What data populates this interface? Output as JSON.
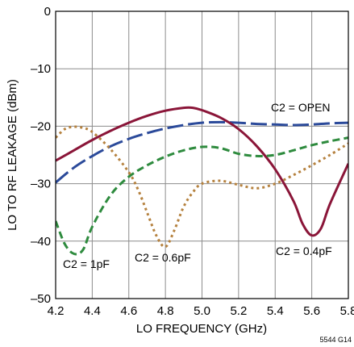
{
  "chart_data": {
    "type": "line",
    "xlabel": "LO FREQUENCY (GHz)",
    "ylabel": "LO TO RF LEAKAGE (dBm)",
    "xlim": [
      4.2,
      5.8
    ],
    "ylim": [
      -50,
      0
    ],
    "xticks": [
      "4.2",
      "4.4",
      "4.6",
      "4.8",
      "5.0",
      "5.2",
      "5.4",
      "5.6",
      "5.8"
    ],
    "yticks": [
      "0",
      "–10",
      "–20",
      "–30",
      "–40",
      "–50"
    ],
    "grid": true,
    "figure_id": "5544 G14",
    "series": [
      {
        "name": "C2 = OPEN",
        "color": "#2b4a9a",
        "style": "long-dash",
        "x": [
          4.2,
          4.3,
          4.4,
          4.5,
          4.6,
          4.7,
          4.8,
          4.9,
          5.0,
          5.1,
          5.2,
          5.3,
          5.4,
          5.5,
          5.6,
          5.7,
          5.8
        ],
        "y": [
          -29.8,
          -27.2,
          -25.2,
          -23.5,
          -22.2,
          -21.2,
          -20.4,
          -19.8,
          -19.4,
          -19.3,
          -19.4,
          -19.6,
          -19.7,
          -19.8,
          -19.7,
          -19.5,
          -19.4
        ]
      },
      {
        "name": "C2 = 0.4pF",
        "color": "#8a1538",
        "style": "solid",
        "x": [
          4.2,
          4.3,
          4.4,
          4.5,
          4.6,
          4.7,
          4.8,
          4.9,
          4.95,
          5.0,
          5.1,
          5.2,
          5.3,
          5.4,
          5.5,
          5.55,
          5.6,
          5.65,
          5.7,
          5.8
        ],
        "y": [
          -26.0,
          -24.2,
          -22.4,
          -20.8,
          -19.4,
          -18.2,
          -17.3,
          -16.8,
          -16.8,
          -17.2,
          -18.5,
          -20.5,
          -23.5,
          -27.5,
          -33.0,
          -37.0,
          -39.0,
          -37.8,
          -33.5,
          -26.5
        ]
      },
      {
        "name": "C2 = 1pF",
        "color": "#2e8b3e",
        "style": "dash",
        "x": [
          4.2,
          4.25,
          4.3,
          4.35,
          4.4,
          4.5,
          4.6,
          4.7,
          4.8,
          4.9,
          5.0,
          5.1,
          5.2,
          5.3,
          5.4,
          5.5,
          5.6,
          5.7,
          5.8
        ],
        "y": [
          -36.5,
          -40.5,
          -42.2,
          -41.5,
          -37.5,
          -32.0,
          -28.8,
          -26.8,
          -25.3,
          -24.2,
          -23.6,
          -23.8,
          -24.8,
          -25.2,
          -25.0,
          -24.2,
          -23.3,
          -22.6,
          -22.0
        ]
      },
      {
        "name": "C2 = 0.6pF",
        "color": "#b5813e",
        "style": "dot",
        "x": [
          4.2,
          4.25,
          4.3,
          4.35,
          4.4,
          4.5,
          4.6,
          4.65,
          4.7,
          4.75,
          4.8,
          4.85,
          4.9,
          4.95,
          5.0,
          5.1,
          5.2,
          5.3,
          5.4,
          5.5,
          5.6,
          5.7,
          5.8
        ],
        "y": [
          -22.0,
          -20.5,
          -20.1,
          -20.3,
          -21.0,
          -24.0,
          -28.0,
          -31.0,
          -35.0,
          -39.0,
          -41.0,
          -38.0,
          -34.0,
          -31.5,
          -30.0,
          -29.5,
          -30.2,
          -30.8,
          -30.0,
          -28.5,
          -26.8,
          -25.0,
          -23.0
        ]
      }
    ],
    "annotations": [
      "C2 = OPEN",
      "C2 = 0.4pF",
      "C2 = 1pF",
      "C2 = 0.6pF"
    ]
  }
}
